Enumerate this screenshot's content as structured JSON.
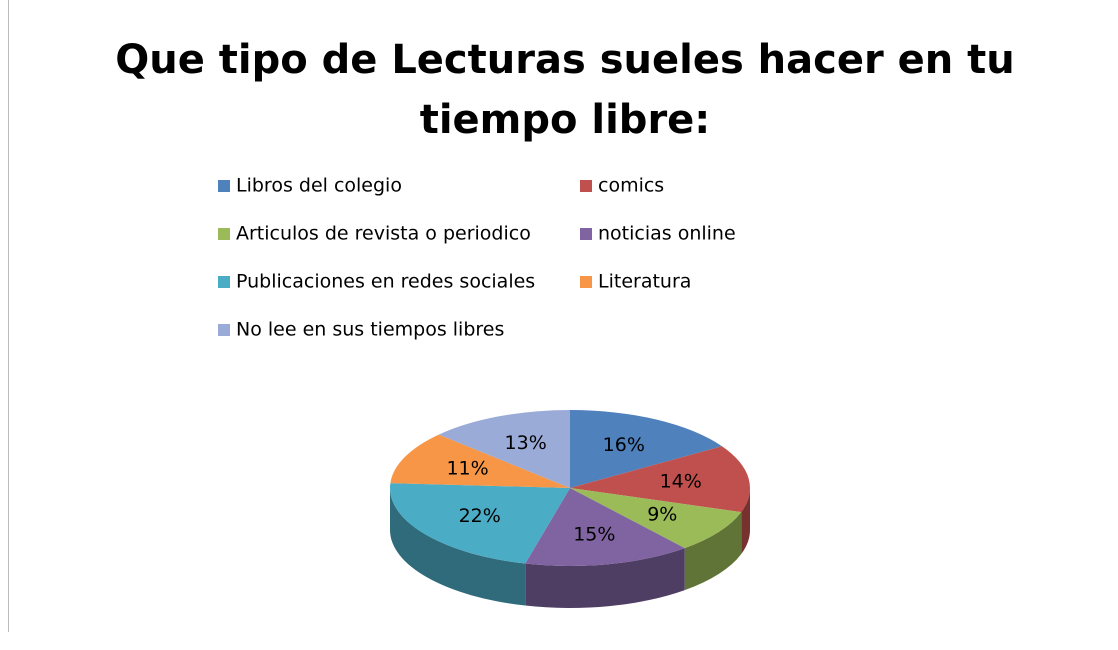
{
  "chart_data": {
    "type": "pie",
    "title": "Que tipo de Lecturas sueles hacer en tu tiempo libre:",
    "categories": [
      "Libros del colegio",
      "comics",
      "Articulos de revista o periodico",
      "noticias online",
      "Publicaciones en redes sociales",
      "Literatura",
      "No lee en sus tiempos libres"
    ],
    "values": [
      16,
      14,
      9,
      15,
      22,
      11,
      13
    ],
    "value_labels": [
      "16%",
      "14%",
      "9%",
      "15%",
      "22%",
      "11%",
      "13%"
    ],
    "colors": [
      "#4f81bd",
      "#c0504d",
      "#9bbb59",
      "#8064a2",
      "#4bacc6",
      "#f79646",
      "#9aabd8"
    ],
    "legend": "top"
  }
}
